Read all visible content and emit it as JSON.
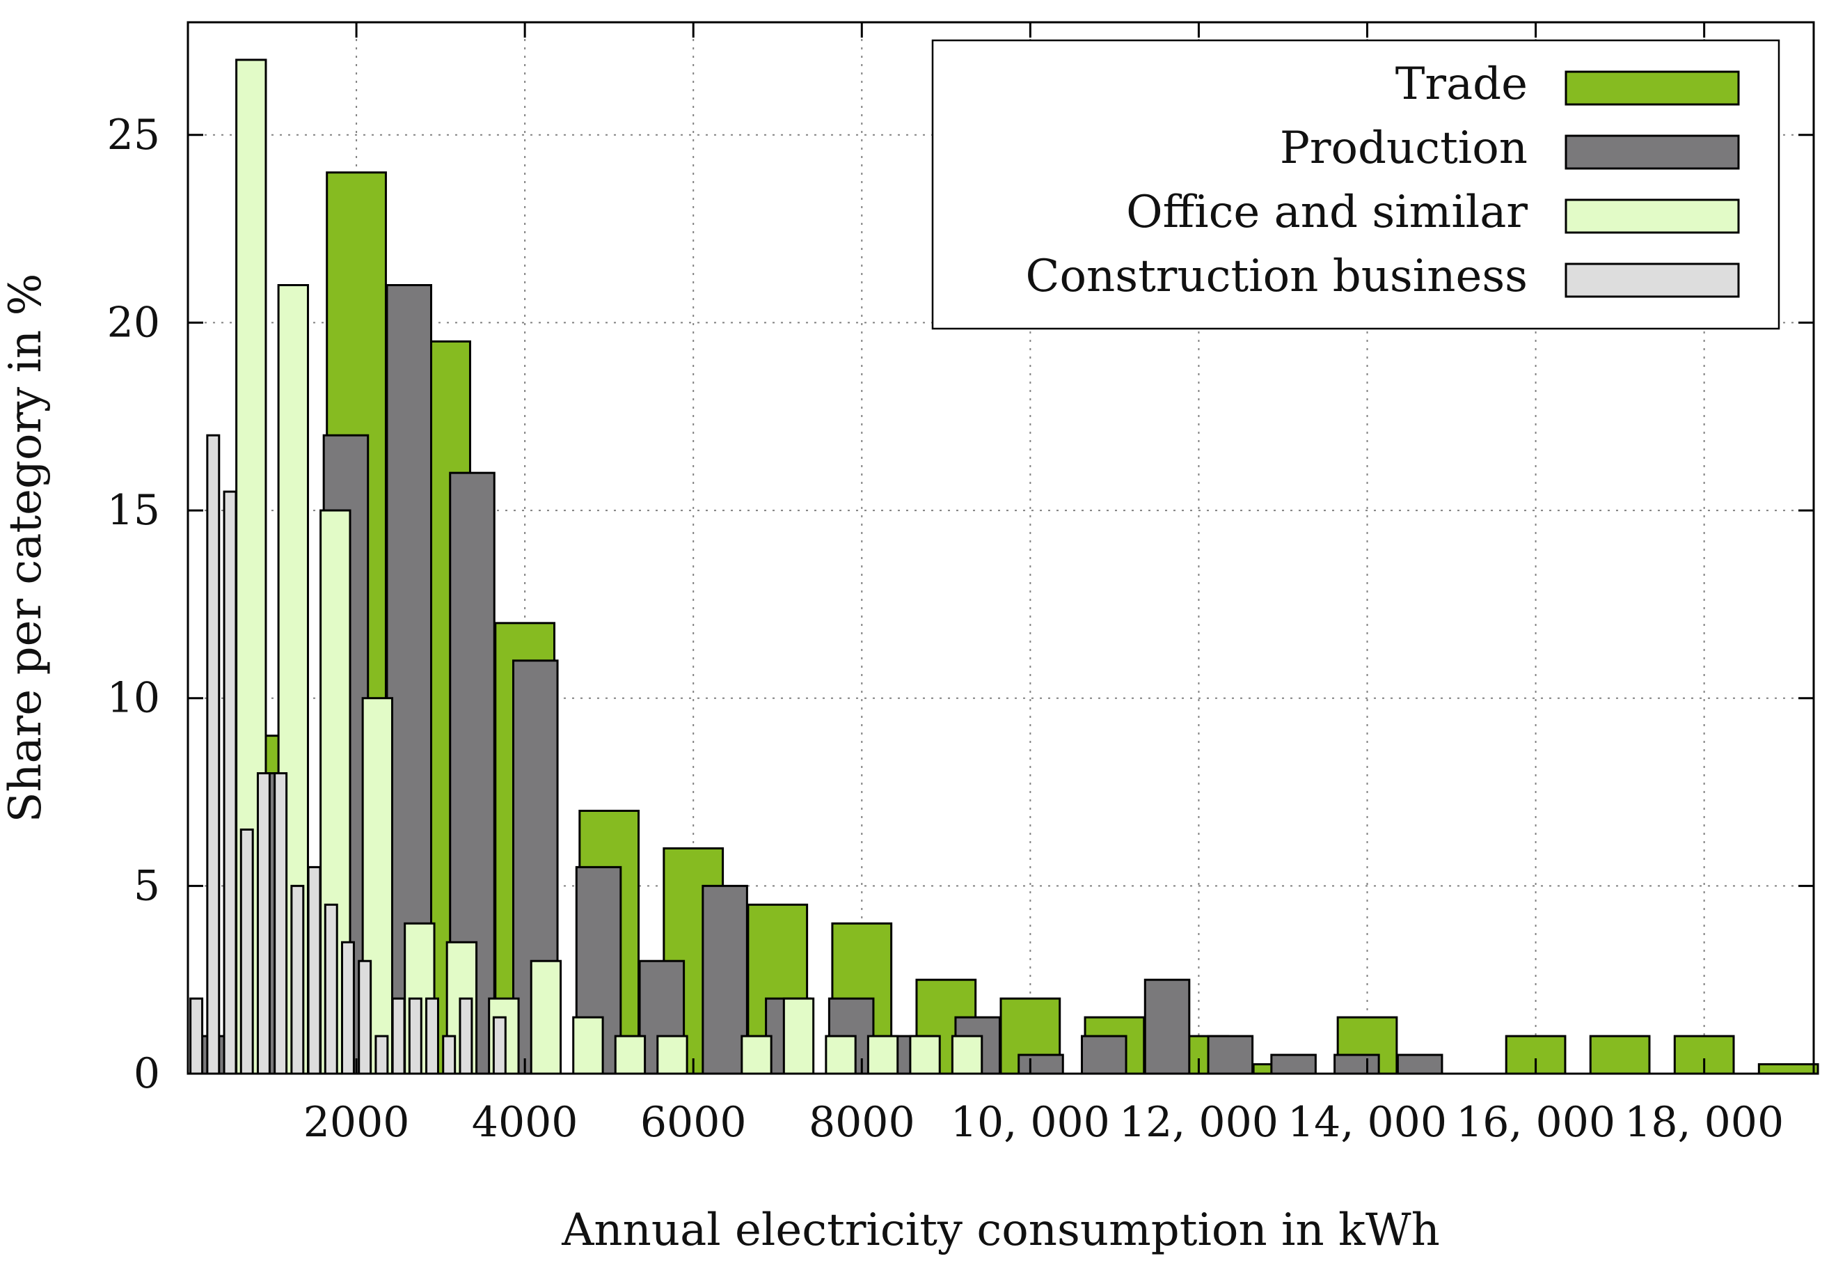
{
  "chart_data": {
    "type": "bar",
    "title": "",
    "xlabel": "Annual electricity consumption in kWh",
    "ylabel": "Share per category in %",
    "xlim": [
      0,
      19300
    ],
    "ylim": [
      0,
      28
    ],
    "grid": true,
    "legend_position": "top-right",
    "x_ticks": [
      2000,
      4000,
      6000,
      8000,
      10000,
      12000,
      14000,
      16000,
      18000
    ],
    "x_tick_labels": [
      "2000",
      "4000",
      "6000",
      "8000",
      "10, 000",
      "12, 000",
      "14, 000",
      "16, 000",
      "18, 000"
    ],
    "y_ticks": [
      0,
      5,
      10,
      15,
      20,
      25
    ],
    "y_tick_labels": [
      "0",
      "5",
      "10",
      "15",
      "20",
      "25"
    ],
    "series": [
      {
        "name": "Trade",
        "color": "#86bb21",
        "bin_width": 1000,
        "bar_fraction": 0.7,
        "x": [
          1000,
          2000,
          3000,
          4000,
          5000,
          6000,
          7000,
          8000,
          9000,
          10000,
          11000,
          12000,
          13000,
          14000,
          15000,
          16000,
          17000,
          18000,
          19000
        ],
        "values": [
          9,
          24,
          19.5,
          12,
          7,
          6,
          4.5,
          4,
          2.5,
          2,
          1.5,
          1,
          0.25,
          1.5,
          0,
          1,
          1,
          1,
          0.25
        ]
      },
      {
        "name": "Production",
        "color": "#7a797b",
        "bin_width": 750,
        "bar_fraction": 0.7,
        "x": [
          375,
          1125,
          1875,
          2625,
          3375,
          4125,
          4875,
          5625,
          6375,
          7125,
          7875,
          8625,
          9375,
          10125,
          10875,
          11625,
          12375,
          13125,
          13875,
          14625
        ],
        "values": [
          1,
          8,
          17,
          21,
          16,
          11,
          5.5,
          3,
          5,
          2,
          2,
          1,
          1.5,
          0.5,
          1,
          2.5,
          1,
          0.5,
          0.5,
          0.5
        ]
      },
      {
        "name": "Office and similar",
        "color": "#e2fbc7",
        "bin_width": 500,
        "bar_fraction": 0.7,
        "x": [
          750,
          1250,
          1750,
          2250,
          2750,
          3250,
          3750,
          4250,
          4750,
          5250,
          5750,
          6250,
          6750,
          7250,
          7750,
          8250,
          8750,
          9250
        ],
        "values": [
          27,
          21,
          15,
          10,
          4,
          3.5,
          2,
          3,
          1.5,
          1,
          1,
          0,
          1,
          2,
          1,
          1,
          1,
          1
        ]
      },
      {
        "name": "Construction business",
        "color": "#dddddd",
        "bin_width": 200,
        "bar_fraction": 0.7,
        "x": [
          100,
          300,
          500,
          700,
          900,
          1100,
          1300,
          1500,
          1700,
          1900,
          2100,
          2300,
          2500,
          2700,
          2900,
          3100,
          3300,
          3500,
          3700,
          3900
        ],
        "values": [
          2,
          17,
          15.5,
          6.5,
          8,
          8,
          5,
          5.5,
          4.5,
          3.5,
          3,
          1,
          2,
          2,
          2,
          1,
          2,
          0,
          1.5,
          0
        ]
      }
    ]
  }
}
